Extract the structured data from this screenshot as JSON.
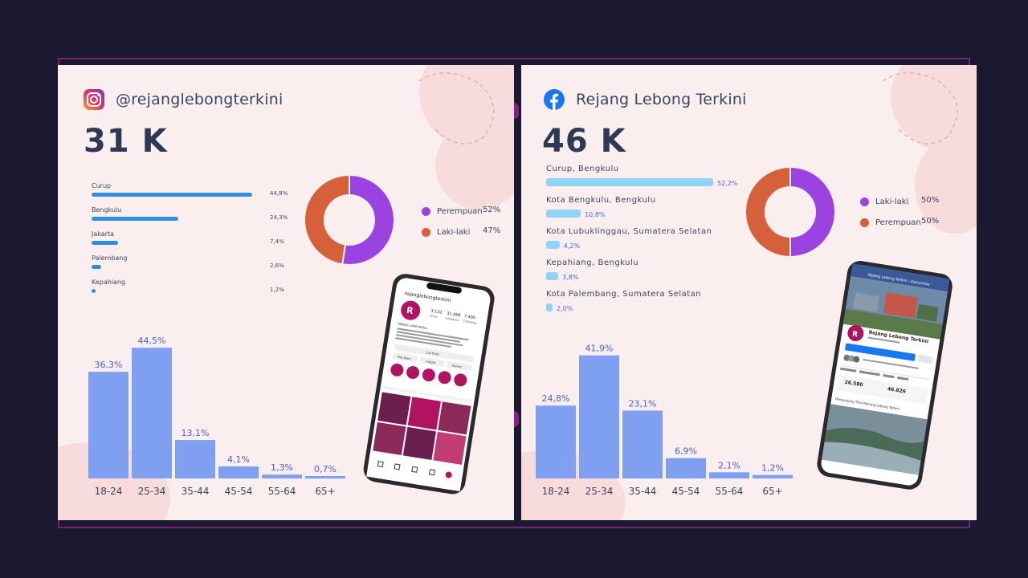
{
  "instagram": {
    "handle": "@rejanglebongterkini",
    "followers": "31 K",
    "icon": "instagram-icon",
    "locations": [
      {
        "name": "Curup",
        "value": 44.8,
        "label": "44,8%"
      },
      {
        "name": "Bengkulu",
        "value": 24.3,
        "label": "24,3%"
      },
      {
        "name": "Jakarta",
        "value": 7.4,
        "label": "7,4%"
      },
      {
        "name": "Palembang",
        "value": 2.6,
        "label": "2,6%"
      },
      {
        "name": "Kepahiang",
        "value": 1.2,
        "label": "1,2%"
      }
    ],
    "gender": [
      {
        "name": "Perempuan",
        "value": 52,
        "label": "52%",
        "color": "#9b43e0"
      },
      {
        "name": "Laki-laki",
        "value": 47,
        "label": "47%",
        "color": "#d6603a"
      }
    ],
    "phone": {
      "username": "rejanglebongterkini",
      "posts": "3.132",
      "posts_label": "Posts",
      "followers": "31.468",
      "followers_label": "Followers",
      "following": "7.490",
      "following_label": "Following",
      "bio_name": "REJANG LANG MEDIA",
      "btn1": "Call Profil",
      "btn2": "Pliw Wam",
      "btn3": "Insight",
      "btn4": "Konten"
    }
  },
  "facebook": {
    "handle": "Rejang Lebong Terkini",
    "followers": "46 K",
    "icon": "facebook-icon",
    "locations": [
      {
        "name": "Curup, Bengkulu",
        "value": 52.2,
        "label": "52,2%"
      },
      {
        "name": "Kota Bengkulu, Bengkulu",
        "value": 10.8,
        "label": "10,8%"
      },
      {
        "name": "Kota Lubuklinggau, Sumatera Selatan",
        "value": 4.2,
        "label": "4,2%"
      },
      {
        "name": "Kepahiang, Bengkulu",
        "value": 3.8,
        "label": "3,8%"
      },
      {
        "name": "Kota Palembang, Sumatera Selatan",
        "value": 2.0,
        "label": "2,0%"
      }
    ],
    "gender": [
      {
        "name": "Laki-laki",
        "value": 50,
        "label": "50%",
        "color": "#9b43e0"
      },
      {
        "name": "Perempuan",
        "value": 50,
        "label": "50%",
        "color": "#d6603a"
      }
    ],
    "phone": {
      "page_name": "Rejang Lebong Terkini",
      "top_bar": "Rejang Lebong Terkini - Komunitas",
      "followers": "26.580",
      "likes": "46.826",
      "post_title": "Pengunjung Tirta Rimang Lebong Terkini"
    }
  },
  "chart_data": [
    {
      "type": "bar",
      "title": "",
      "categories": [
        "18-24",
        "25-34",
        "35-44",
        "45-54",
        "55-64",
        "65+"
      ],
      "values": [
        36.3,
        44.5,
        13.1,
        4.1,
        1.3,
        0.7
      ],
      "labels": [
        "36,3%",
        "44,5%",
        "13,1%",
        "4,1%",
        "1,3%",
        "0,7%"
      ],
      "ylim": [
        0,
        50
      ],
      "color": "#7f9ff0",
      "grid": false
    },
    {
      "type": "bar",
      "title": "",
      "categories": [
        "18-24",
        "25-34",
        "35-44",
        "45-54",
        "55-64",
        "65+"
      ],
      "values": [
        24.8,
        41.9,
        23.1,
        6.9,
        2.1,
        1.2
      ],
      "labels": [
        "24,8%",
        "41,9%",
        "23,1%",
        "6,9%",
        "2,1%",
        "1,2%"
      ],
      "ylim": [
        0,
        50
      ],
      "color": "#7f9ff0",
      "grid": false
    },
    {
      "type": "pie",
      "title": "",
      "categories": [
        "Perempuan",
        "Laki-laki"
      ],
      "values": [
        52,
        47
      ]
    },
    {
      "type": "pie",
      "title": "",
      "categories": [
        "Laki-laki",
        "Perempuan"
      ],
      "values": [
        50,
        50
      ]
    }
  ]
}
